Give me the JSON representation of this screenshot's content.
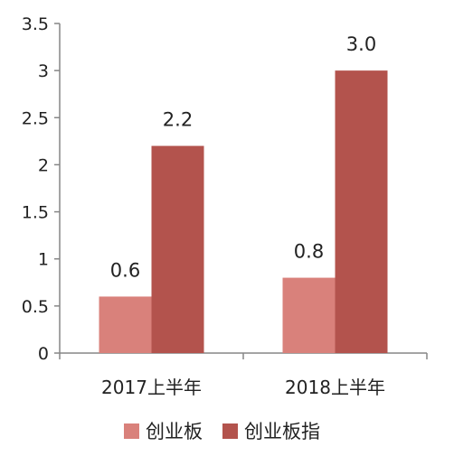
{
  "chart_data": {
    "type": "bar",
    "title": "",
    "xlabel": "",
    "ylabel": "",
    "categories": [
      "2017上半年",
      "2018上半年"
    ],
    "series": [
      {
        "name": "创业板",
        "values": [
          0.6,
          0.8
        ],
        "labels": [
          "0.6",
          "0.8"
        ],
        "color": "#d9817b"
      },
      {
        "name": "创业板指",
        "values": [
          2.2,
          3.0
        ],
        "labels": [
          "2.2",
          "3.0"
        ],
        "color": "#b3534d"
      }
    ],
    "ylim": [
      0,
      3.5
    ],
    "yticks": [
      0,
      0.5,
      1,
      1.5,
      2,
      2.5,
      3,
      3.5
    ],
    "ytick_labels": [
      "0",
      "0.5",
      "1",
      "1.5",
      "2",
      "2.5",
      "3",
      "3.5"
    ],
    "grid": false,
    "legend_position": "bottom"
  }
}
